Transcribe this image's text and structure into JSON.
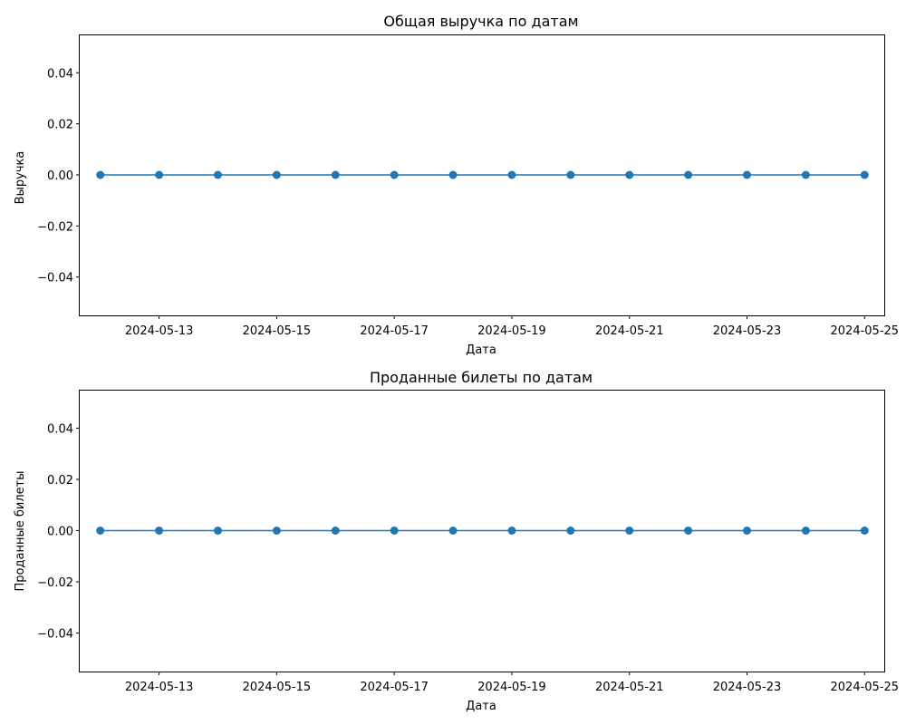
{
  "chart_data": [
    {
      "type": "line",
      "title": "Общая выручка по датам",
      "xlabel": "Дата",
      "ylabel": "Выручка",
      "x": [
        "2024-05-12",
        "2024-05-13",
        "2024-05-14",
        "2024-05-15",
        "2024-05-16",
        "2024-05-17",
        "2024-05-18",
        "2024-05-19",
        "2024-05-20",
        "2024-05-21",
        "2024-05-22",
        "2024-05-23",
        "2024-05-24",
        "2024-05-25"
      ],
      "series": [
        {
          "values": [
            0,
            0,
            0,
            0,
            0,
            0,
            0,
            0,
            0,
            0,
            0,
            0,
            0,
            0
          ]
        }
      ],
      "xlim": [
        "2024-05-11",
        "2024-05-26"
      ],
      "ylim": [
        -0.055,
        0.055
      ],
      "xticks": [
        "2024-05-13",
        "2024-05-15",
        "2024-05-17",
        "2024-05-19",
        "2024-05-21",
        "2024-05-23",
        "2024-05-25"
      ],
      "yticks": [
        "0.04",
        "0.02",
        "0.00",
        "−0.02",
        "−0.04"
      ],
      "ytick_values": [
        0.04,
        0.02,
        0.0,
        -0.02,
        -0.04
      ],
      "marker": "circle",
      "color": "#1f77b4",
      "grid": false,
      "legend": "none"
    },
    {
      "type": "line",
      "title": "Проданные билеты по датам",
      "xlabel": "Дата",
      "ylabel": "Проданные билеты",
      "x": [
        "2024-05-12",
        "2024-05-13",
        "2024-05-14",
        "2024-05-15",
        "2024-05-16",
        "2024-05-17",
        "2024-05-18",
        "2024-05-19",
        "2024-05-20",
        "2024-05-21",
        "2024-05-22",
        "2024-05-23",
        "2024-05-24",
        "2024-05-25"
      ],
      "series": [
        {
          "values": [
            0,
            0,
            0,
            0,
            0,
            0,
            0,
            0,
            0,
            0,
            0,
            0,
            0,
            0
          ]
        }
      ],
      "xlim": [
        "2024-05-11",
        "2024-05-26"
      ],
      "ylim": [
        -0.055,
        0.055
      ],
      "xticks": [
        "2024-05-13",
        "2024-05-15",
        "2024-05-17",
        "2024-05-19",
        "2024-05-21",
        "2024-05-23",
        "2024-05-25"
      ],
      "yticks": [
        "0.04",
        "0.02",
        "0.00",
        "−0.02",
        "−0.04"
      ],
      "ytick_values": [
        0.04,
        0.02,
        0.0,
        -0.02,
        -0.04
      ],
      "marker": "circle",
      "color": "#1f77b4",
      "grid": false,
      "legend": "none"
    }
  ]
}
